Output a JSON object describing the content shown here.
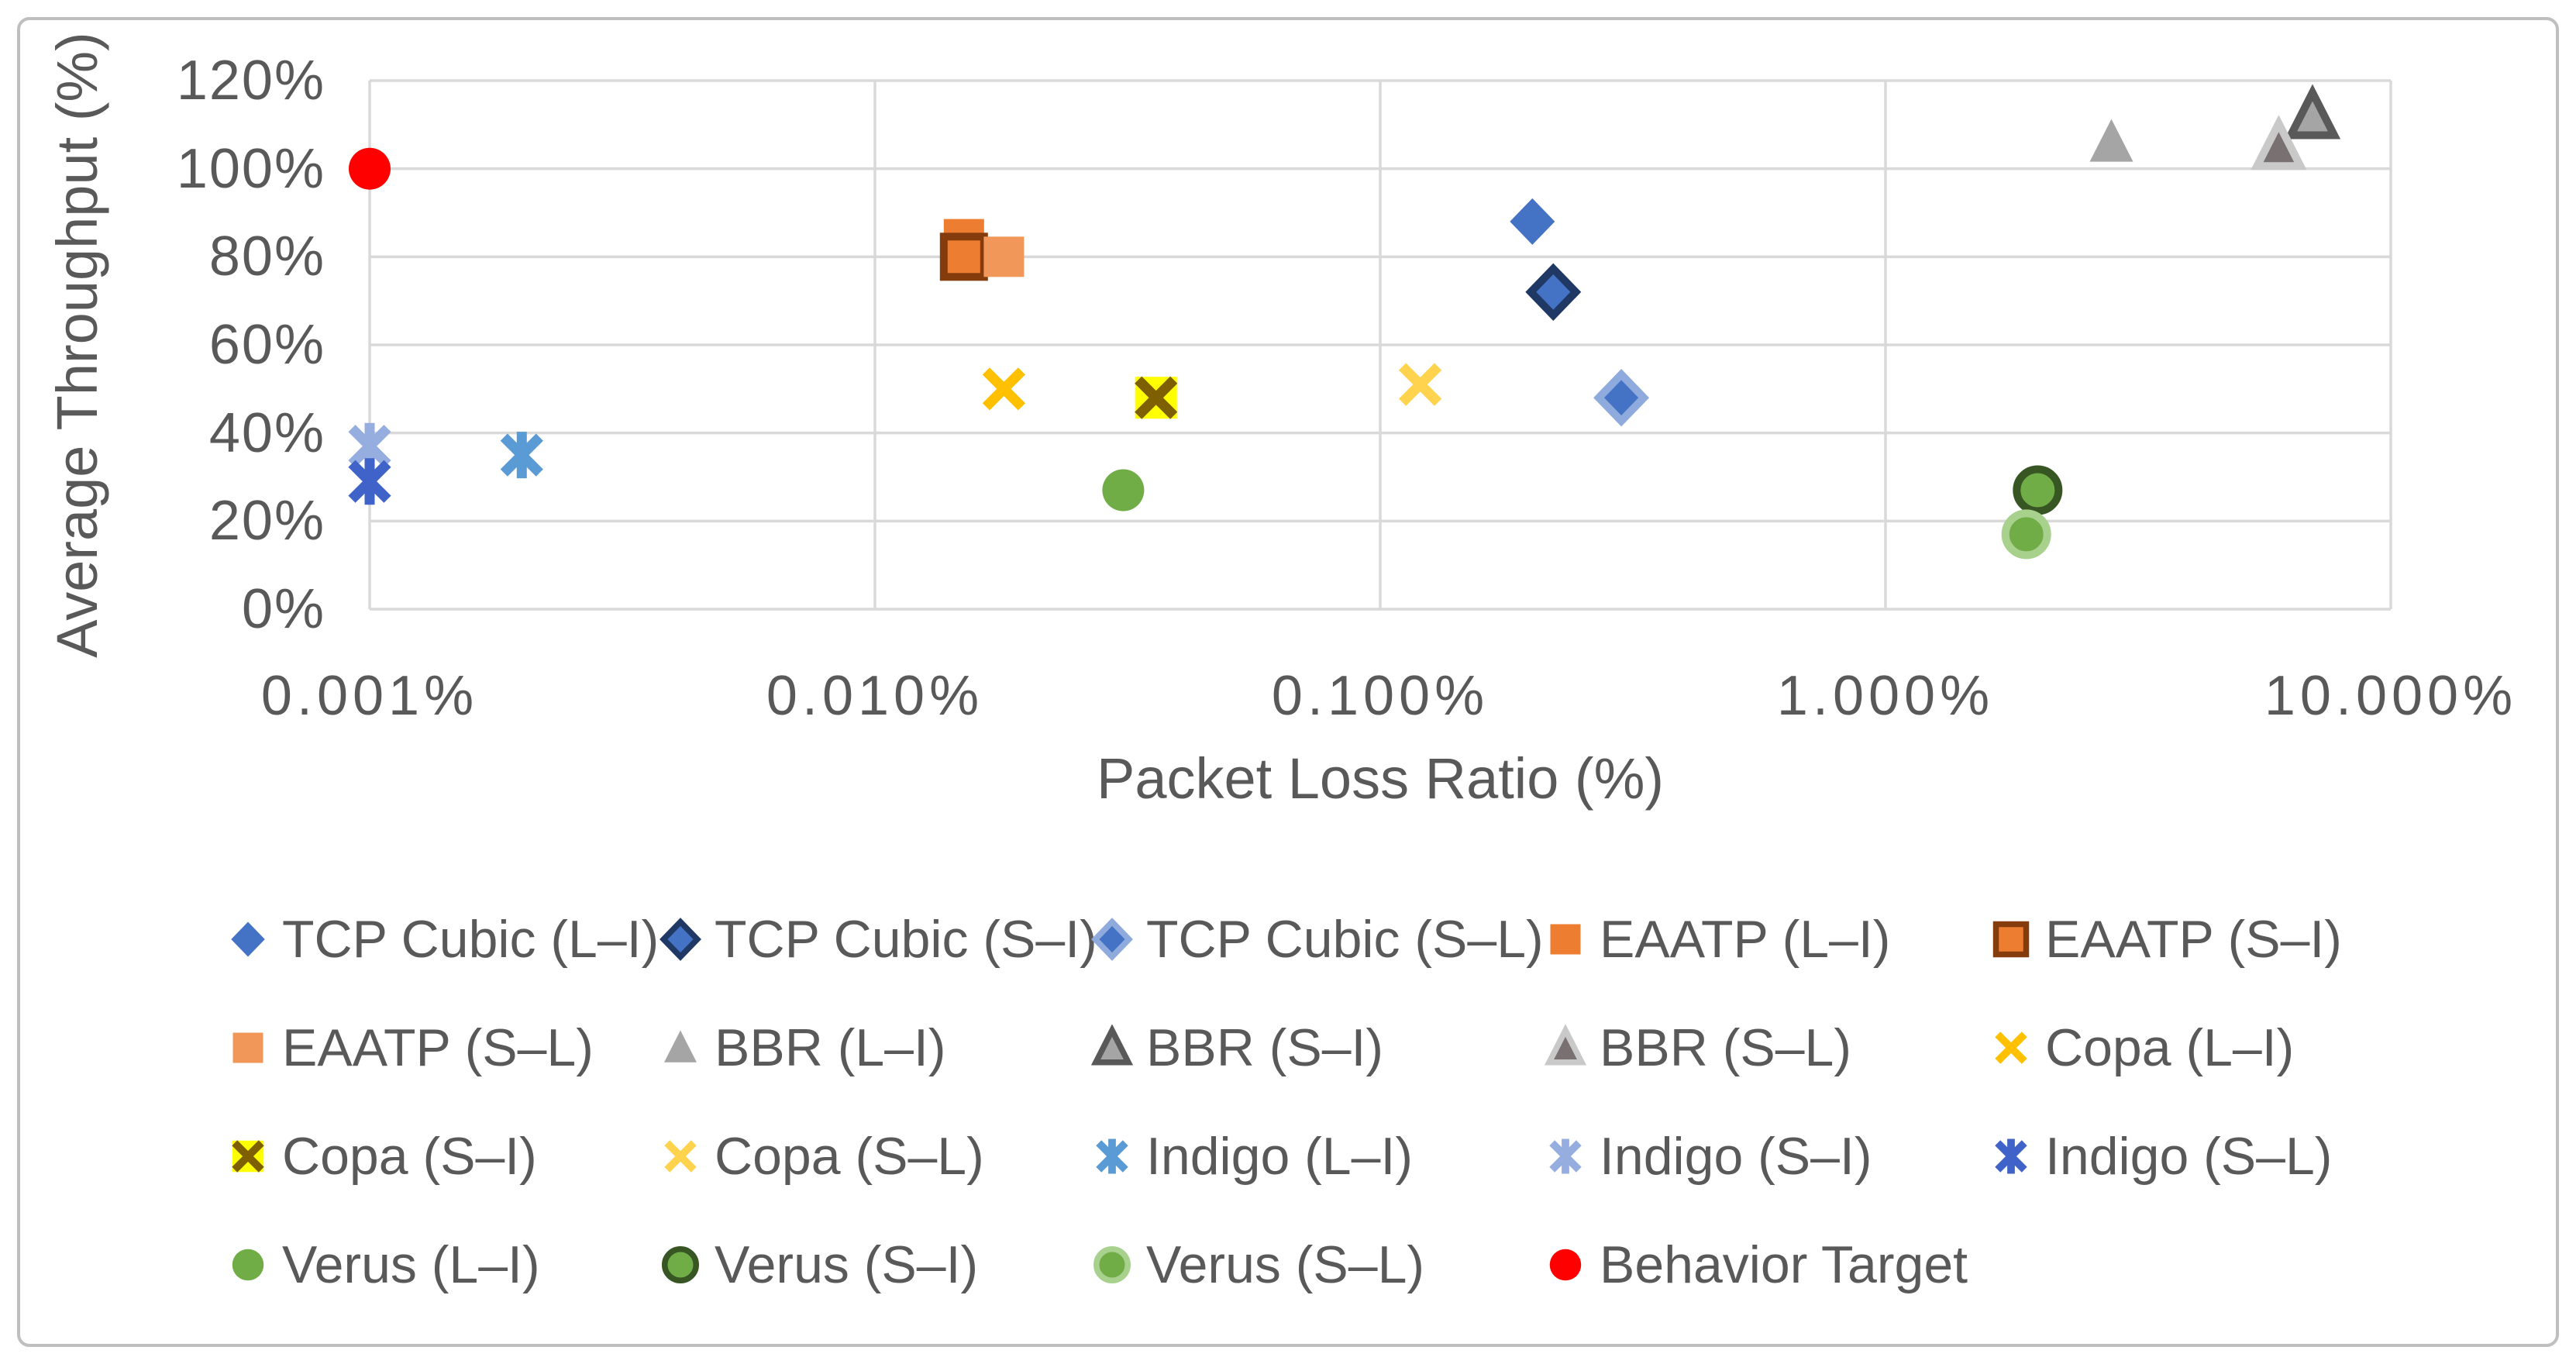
{
  "figure": {
    "background_color": "#FFFFFF",
    "border_color": "#BFBFBF",
    "text_color": "#595959",
    "gridline_color": "#D9D9D9"
  },
  "chart_data": {
    "type": "scatter",
    "title": "",
    "xlabel": "Packet Loss Ratio (%)",
    "ylabel": "Average Throughput (%)",
    "x_scale": "log",
    "x_tick_labels": [
      "0.001%",
      "0.010%",
      "0.100%",
      "1.000%",
      "10.000%"
    ],
    "x_tick_values": [
      0.001,
      0.01,
      0.1,
      1,
      10
    ],
    "y_tick_labels": [
      "0%",
      "20%",
      "40%",
      "60%",
      "80%",
      "100%",
      "120%"
    ],
    "y_tick_values": [
      0,
      20,
      40,
      60,
      80,
      100,
      120
    ],
    "ylim": [
      0,
      120
    ],
    "grid": true,
    "legend_position": "bottom",
    "series": [
      {
        "name": "TCP Cubic (L–I)",
        "marker": "diamond",
        "fill": "#4472C4",
        "stroke": null,
        "points": [
          [
            0.2,
            88
          ]
        ]
      },
      {
        "name": "TCP Cubic (S–I)",
        "marker": "diamond",
        "fill": "#4472C4",
        "stroke": "#1F3864",
        "points": [
          [
            0.22,
            72
          ]
        ]
      },
      {
        "name": "TCP Cubic (S–L)",
        "marker": "diamond",
        "fill": "#4472C4",
        "stroke": "#8FAADC",
        "points": [
          [
            0.3,
            48
          ]
        ]
      },
      {
        "name": "EAATP (L–I)",
        "marker": "square",
        "fill": "#ED7D31",
        "stroke": null,
        "points": [
          [
            0.015,
            84
          ]
        ]
      },
      {
        "name": "EAATP (S–I)",
        "marker": "square",
        "fill": "#ED7D31",
        "stroke": "#843C0C",
        "points": [
          [
            0.015,
            80
          ]
        ]
      },
      {
        "name": "EAATP (S–L)",
        "marker": "square",
        "fill": "#F1975A",
        "stroke": null,
        "points": [
          [
            0.018,
            80
          ]
        ]
      },
      {
        "name": "BBR (L–I)",
        "marker": "triangle",
        "fill": "#A5A5A5",
        "stroke": null,
        "points": [
          [
            2.8,
            106
          ]
        ]
      },
      {
        "name": "BBR (S–I)",
        "marker": "triangle",
        "fill": "#A5A5A5",
        "stroke": "#595959",
        "points": [
          [
            7.0,
            112
          ]
        ]
      },
      {
        "name": "BBR (S–L)",
        "marker": "triangle",
        "fill": "#797171",
        "stroke": "#C9C9C9",
        "points": [
          [
            6.0,
            105
          ]
        ]
      },
      {
        "name": "Copa (L–I)",
        "marker": "x",
        "fill": "#FFC000",
        "stroke": null,
        "points": [
          [
            0.018,
            50
          ]
        ]
      },
      {
        "name": "Copa (S–I)",
        "marker": "x",
        "fill": "#7F6000",
        "stroke": null,
        "bg": "#FFFF00",
        "points": [
          [
            0.036,
            48
          ]
        ]
      },
      {
        "name": "Copa (S–L)",
        "marker": "x",
        "fill": "#FFD34D",
        "stroke": null,
        "points": [
          [
            0.12,
            51
          ]
        ]
      },
      {
        "name": "Indigo (L–I)",
        "marker": "star",
        "fill": "#5B9BD5",
        "stroke": null,
        "points": [
          [
            0.002,
            35
          ]
        ]
      },
      {
        "name": "Indigo (S–I)",
        "marker": "star",
        "fill": "#96ADE0",
        "stroke": null,
        "points": [
          [
            0.001,
            37
          ]
        ]
      },
      {
        "name": "Indigo (S–L)",
        "marker": "star",
        "fill": "#3F63C8",
        "stroke": null,
        "points": [
          [
            0.001,
            29
          ]
        ]
      },
      {
        "name": "Verus (L–I)",
        "marker": "circle",
        "fill": "#70AD47",
        "stroke": null,
        "points": [
          [
            0.031,
            27
          ]
        ]
      },
      {
        "name": "Verus (S–I)",
        "marker": "circle",
        "fill": "#70AD47",
        "stroke": "#375623",
        "points": [
          [
            2.0,
            27
          ]
        ]
      },
      {
        "name": "Verus (S–L)",
        "marker": "circle",
        "fill": "#70AD47",
        "stroke": "#A9D18E",
        "points": [
          [
            1.9,
            17
          ]
        ]
      },
      {
        "name": "Behavior Target",
        "marker": "circle",
        "fill": "#FF0000",
        "stroke": null,
        "points": [
          [
            0.001,
            100
          ]
        ]
      }
    ]
  }
}
